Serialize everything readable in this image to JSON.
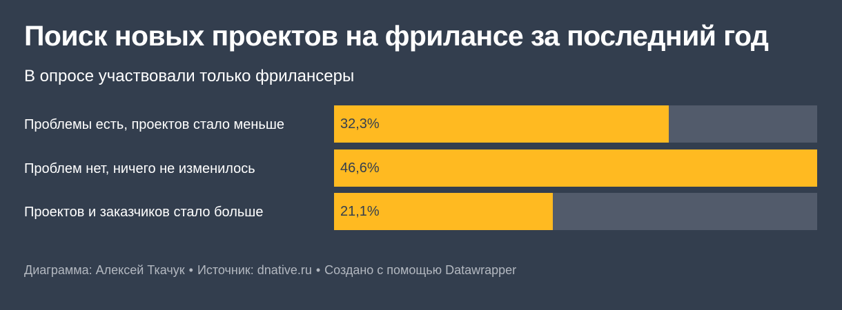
{
  "title": "Поиск новых проектов на фрилансе за последний год",
  "subtitle": "В опросе участвовали только фрилансеры",
  "chart_data": {
    "type": "bar",
    "orientation": "horizontal",
    "categories": [
      "Проблемы есть, проектов стало меньше",
      "Проблем нет, ничего не изменилось",
      "Проектов и заказчиков стало больше"
    ],
    "values": [
      32.3,
      46.6,
      21.1
    ],
    "value_labels": [
      "32,3%",
      "46,6%",
      "21,1%"
    ],
    "xlim": [
      0,
      46.6
    ],
    "unit": "%",
    "grid": false,
    "legend": "none",
    "colors": {
      "background": "#333e4e",
      "bar": "#ffba21",
      "track": "#525b6b"
    }
  },
  "footer": {
    "author": "Диаграмма: Алексей Ткачук",
    "separator": "•",
    "source": "Источник: dnative.ru",
    "tool": "Создано с помощью Datawrapper"
  }
}
